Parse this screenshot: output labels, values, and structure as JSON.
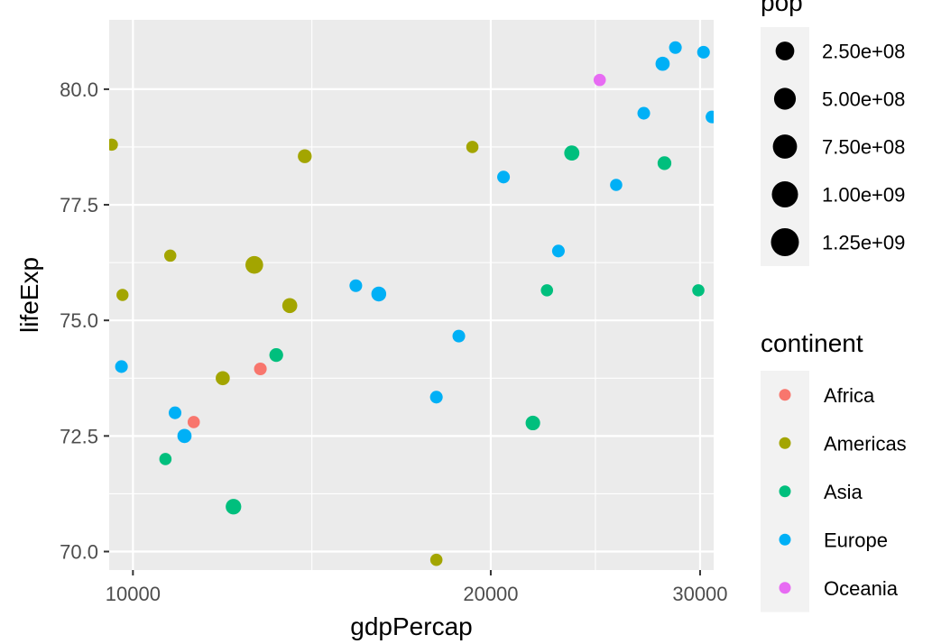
{
  "chart_data": {
    "type": "scatter",
    "title": "",
    "xlabel": "gdpPercap",
    "ylabel": "lifeExp",
    "x_scale": "log10",
    "xlim": [
      9550,
      30800
    ],
    "ylim": [
      69.6,
      81.5
    ],
    "grid": true,
    "x_ticks": [
      10000,
      20000,
      30000
    ],
    "x_tick_labels": [
      "10000",
      "20000",
      "30000"
    ],
    "y_ticks": [
      70.0,
      72.5,
      75.0,
      77.5,
      80.0
    ],
    "y_tick_labels": [
      "70.0",
      "72.5",
      "75.0",
      "77.5",
      "80.0"
    ],
    "legend_position": "right",
    "size_legend": {
      "title": "pop",
      "values": [
        250000000,
        500000000,
        750000000,
        1000000000,
        1250000000
      ],
      "labels": [
        "2.50e+08",
        "5.00e+08",
        "7.50e+08",
        "1.00e+09",
        "1.25e+09"
      ]
    },
    "color_legend": {
      "title": "continent",
      "entries": [
        {
          "name": "Africa",
          "color": "#F8766D"
        },
        {
          "name": "Americas",
          "color": "#A3A500"
        },
        {
          "name": "Asia",
          "color": "#00BF7D"
        },
        {
          "name": "Europe",
          "color": "#00B0F6"
        },
        {
          "name": "Oceania",
          "color": "#E76BF3"
        }
      ]
    },
    "points": [
      {
        "continent": "Americas",
        "x": 9600,
        "y": 78.8,
        "pop": 4000000
      },
      {
        "continent": "Americas",
        "x": 9800,
        "y": 75.55,
        "pop": 3500000
      },
      {
        "continent": "Europe",
        "x": 9780,
        "y": 74.0,
        "pop": 10000000
      },
      {
        "continent": "Americas",
        "x": 10750,
        "y": 76.4,
        "pop": 4500000
      },
      {
        "continent": "Europe",
        "x": 10850,
        "y": 73.0,
        "pop": 10000000
      },
      {
        "continent": "Europe",
        "x": 11050,
        "y": 72.5,
        "pop": 40000000
      },
      {
        "continent": "Africa",
        "x": 11250,
        "y": 72.8,
        "pop": 5000000
      },
      {
        "continent": "Asia",
        "x": 10650,
        "y": 72.0,
        "pop": 5000000
      },
      {
        "continent": "Americas",
        "x": 11900,
        "y": 73.75,
        "pop": 38000000
      },
      {
        "continent": "Asia",
        "x": 12150,
        "y": 70.97,
        "pop": 85000000
      },
      {
        "continent": "Americas",
        "x": 12650,
        "y": 76.2,
        "pop": 190000000
      },
      {
        "continent": "Africa",
        "x": 12800,
        "y": 73.95,
        "pop": 10000000
      },
      {
        "continent": "Asia",
        "x": 13200,
        "y": 74.25,
        "pop": 30000000
      },
      {
        "continent": "Americas",
        "x": 13550,
        "y": 75.32,
        "pop": 65000000
      },
      {
        "continent": "Americas",
        "x": 13950,
        "y": 78.55,
        "pop": 32000000
      },
      {
        "continent": "Europe",
        "x": 15400,
        "y": 75.75,
        "pop": 10000000
      },
      {
        "continent": "Europe",
        "x": 16100,
        "y": 75.57,
        "pop": 60000000
      },
      {
        "continent": "Americas",
        "x": 18000,
        "y": 69.82,
        "pop": 5000000
      },
      {
        "continent": "Europe",
        "x": 18000,
        "y": 73.34,
        "pop": 10000000
      },
      {
        "continent": "Europe",
        "x": 18800,
        "y": 74.66,
        "pop": 10000000
      },
      {
        "continent": "Americas",
        "x": 19300,
        "y": 78.75,
        "pop": 5000000
      },
      {
        "continent": "Europe",
        "x": 20500,
        "y": 78.1,
        "pop": 10000000
      },
      {
        "continent": "Asia",
        "x": 21700,
        "y": 72.78,
        "pop": 50000000
      },
      {
        "continent": "Asia",
        "x": 22300,
        "y": 75.65,
        "pop": 5000000
      },
      {
        "continent": "Europe",
        "x": 22800,
        "y": 76.5,
        "pop": 10000000
      },
      {
        "continent": "Asia",
        "x": 23400,
        "y": 78.62,
        "pop": 70000000
      },
      {
        "continent": "Oceania",
        "x": 24700,
        "y": 80.2,
        "pop": 5000000
      },
      {
        "continent": "Europe",
        "x": 25500,
        "y": 77.93,
        "pop": 5000000
      },
      {
        "continent": "Europe",
        "x": 26900,
        "y": 79.48,
        "pop": 10000000
      },
      {
        "continent": "Europe",
        "x": 27900,
        "y": 80.55,
        "pop": 40000000
      },
      {
        "continent": "Asia",
        "x": 28000,
        "y": 78.4,
        "pop": 30000000
      },
      {
        "continent": "Europe",
        "x": 28600,
        "y": 80.9,
        "pop": 10000000
      },
      {
        "continent": "Asia",
        "x": 29900,
        "y": 75.65,
        "pop": 5000000
      },
      {
        "continent": "Europe",
        "x": 30200,
        "y": 80.8,
        "pop": 10000000
      },
      {
        "continent": "Europe",
        "x": 30700,
        "y": 79.4,
        "pop": 10000000
      }
    ]
  }
}
